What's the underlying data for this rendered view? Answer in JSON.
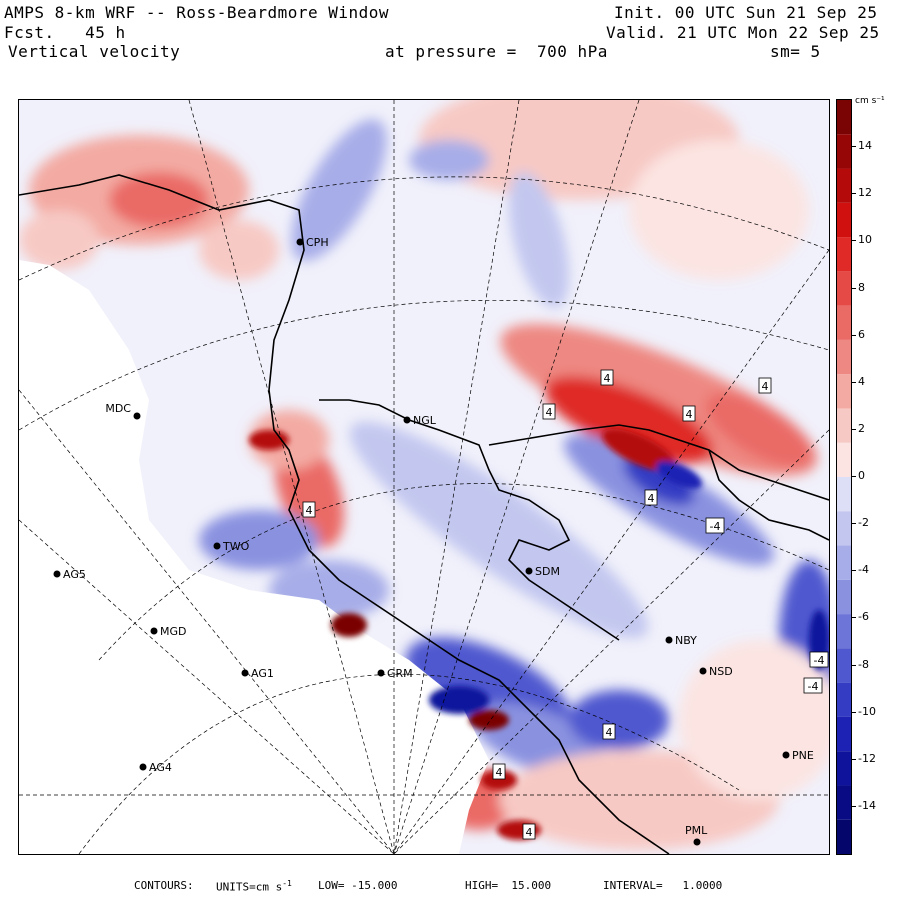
{
  "header": {
    "title": "AMPS 8-km WRF -- Ross-Beardmore Window",
    "fcst": "Fcst.   45 h",
    "field": "Vertical velocity",
    "pressure": "at pressure =  700 hPa",
    "init": "Init. 00 UTC Sun 21 Sep 25",
    "valid": "Valid. 21 UTC Mon 22 Sep 25",
    "smooth": "sm= 5"
  },
  "colorbar": {
    "units": "cm s⁻¹",
    "labels": [
      "14",
      "12",
      "10",
      "8",
      "6",
      "4",
      "2",
      "0",
      "-2",
      "-4",
      "-6",
      "-8",
      "-10",
      "-12",
      "-14"
    ],
    "values": [
      14,
      12,
      10,
      8,
      6,
      4,
      2,
      0,
      -2,
      -4,
      -6,
      -8,
      -10,
      -12,
      -14
    ],
    "range": [
      -16,
      16
    ],
    "colors_pos": [
      "#fbe4e2",
      "#f7c9c4",
      "#f3aaa3",
      "#ee8882",
      "#ea6b66",
      "#e54a46",
      "#df2a27",
      "#d0100f",
      "#b40a0a",
      "#960606",
      "#7a0303"
    ],
    "colors_neg": [
      "#dcdff5",
      "#c3c7ef",
      "#a7ade8",
      "#8a92e0",
      "#6d76d8",
      "#5058cf",
      "#353cc4",
      "#1d22b4",
      "#0f139c",
      "#080b84",
      "#04066c"
    ]
  },
  "stations": [
    {
      "name": "CPH",
      "color": "#000"
    },
    {
      "name": "MDC",
      "color": "#000"
    },
    {
      "name": "NGL",
      "color": "#000"
    },
    {
      "name": "TWO",
      "color": "#000"
    },
    {
      "name": "AG5",
      "color": "#000"
    },
    {
      "name": "SDM",
      "color": "#000"
    },
    {
      "name": "MGD",
      "color": "#000"
    },
    {
      "name": "NBY",
      "color": "#000"
    },
    {
      "name": "AG1",
      "color": "#000"
    },
    {
      "name": "GRM",
      "color": "#000"
    },
    {
      "name": "NSD",
      "color": "#000"
    },
    {
      "name": "AG4",
      "color": "#000"
    },
    {
      "name": "PNE",
      "color": "#000"
    },
    {
      "name": "PML",
      "color": "#000"
    }
  ],
  "contour_labels": [
    "4",
    "4",
    "4",
    "4",
    "4",
    "4",
    "-4",
    "-4",
    "-4",
    "4",
    "4",
    "4"
  ],
  "footer": {
    "contours": "CONTOURS:",
    "units": "UNITS=cm s",
    "units_exp": "-1",
    "low": "LOW= -15.000",
    "high": "HIGH=  15.000",
    "interval": "INTERVAL=   1.0000"
  }
}
